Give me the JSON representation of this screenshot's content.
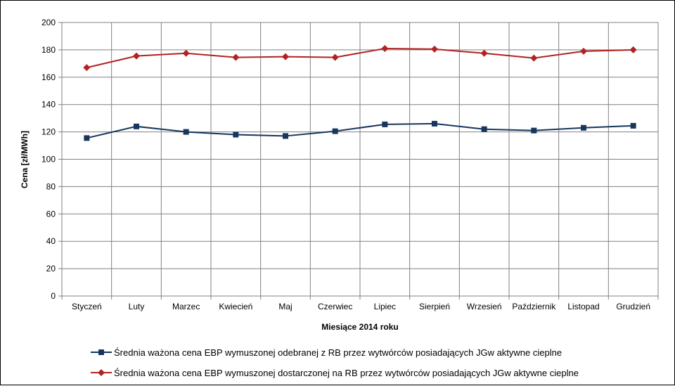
{
  "chart_data": {
    "type": "line",
    "xlabel": "Miesiące 2014 roku",
    "ylabel": "Cena [zł/MWh]",
    "ylim": [
      0,
      200
    ],
    "ytick_step": 20,
    "grid": true,
    "legend_position": "bottom",
    "categories": [
      "Styczeń",
      "Luty",
      "Marzec",
      "Kwiecień",
      "Maj",
      "Czerwiec",
      "Lipiec",
      "Sierpień",
      "Wrzesień",
      "Październik",
      "Listopad",
      "Grudzień"
    ],
    "series": [
      {
        "name": "Średnia ważona cena EBP wymuszonej odebranej z RB przez wytwórców posiadających JGw aktywne cieplne",
        "color": "#17365d",
        "marker": "square",
        "values": [
          115.5,
          124,
          120,
          118,
          117,
          120.5,
          125.5,
          126,
          122,
          121,
          123,
          124.5
        ]
      },
      {
        "name": "Średnia ważona cena EBP wymuszonej dostarczonej na RB przez wytwórców posiadających JGw aktywne cieplne",
        "color": "#b22222",
        "marker": "diamond",
        "values": [
          167,
          175.5,
          177.5,
          174.5,
          175,
          174.5,
          181,
          180.5,
          177.5,
          174,
          179,
          180
        ]
      }
    ]
  }
}
